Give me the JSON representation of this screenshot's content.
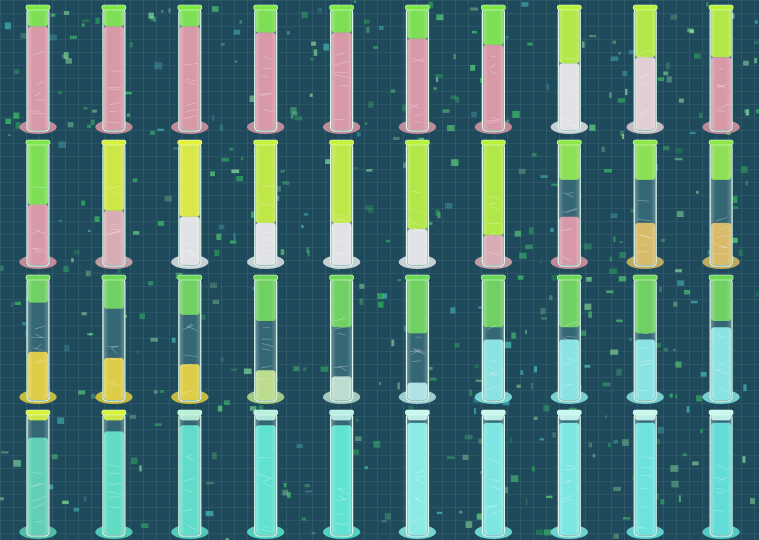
{
  "image": {
    "kind": "contact-sheet",
    "description_free": true,
    "background_color": "#1f4a5c",
    "grid_color": "#6f9aa8",
    "rows": [
      {
        "tubes": [
          {
            "fill": "#e89aa8",
            "fill_level": 0.85,
            "top": "#7ee84a",
            "top_level": 0.15
          },
          {
            "fill": "#e89aa8",
            "fill_level": 0.85,
            "top": "#7ee84a",
            "top_level": 0.15
          },
          {
            "fill": "#e89aa8",
            "fill_level": 0.85,
            "top": "#7ee84a",
            "top_level": 0.15
          },
          {
            "fill": "#e89aa8",
            "fill_level": 0.8,
            "top": "#7ee84a",
            "top_level": 0.2
          },
          {
            "fill": "#e89aa8",
            "fill_level": 0.8,
            "top": "#7ee84a",
            "top_level": 0.2
          },
          {
            "fill": "#e89aa8",
            "fill_level": 0.75,
            "top": "#7ee84a",
            "top_level": 0.25
          },
          {
            "fill": "#e89aa8",
            "fill_level": 0.7,
            "top": "#7ee84a",
            "top_level": 0.3
          },
          {
            "fill": "#f3f0f3",
            "fill_level": 0.55,
            "top": "#b8f23a",
            "top_level": 0.45
          },
          {
            "fill": "#f3d8dc",
            "fill_level": 0.6,
            "top": "#b8f23a",
            "top_level": 0.4
          },
          {
            "fill": "#e89aa8",
            "fill_level": 0.6,
            "top": "#b8f23a",
            "top_level": 0.4
          }
        ]
      },
      {
        "tubes": [
          {
            "fill": "#e89aa8",
            "fill_level": 0.5,
            "top": "#7ee84a",
            "top_level": 0.5
          },
          {
            "fill": "#e8b0b8",
            "fill_level": 0.45,
            "top": "#d8f23a",
            "top_level": 0.55
          },
          {
            "fill": "#f3f0f3",
            "fill_level": 0.4,
            "top": "#e6f23a",
            "top_level": 0.6
          },
          {
            "fill": "#f3f0f3",
            "fill_level": 0.35,
            "top": "#c8f23a",
            "top_level": 0.65
          },
          {
            "fill": "#f3f0f3",
            "fill_level": 0.35,
            "top": "#c8f23a",
            "top_level": 0.65
          },
          {
            "fill": "#f3f0f3",
            "fill_level": 0.3,
            "top": "#b8f23a",
            "top_level": 0.7
          },
          {
            "fill": "#e8b0b8",
            "fill_level": 0.25,
            "top": "#b8f23a",
            "top_level": 0.75
          },
          {
            "fill": "#e89aa8",
            "fill_level": 0.4,
            "top": "#8ee84a",
            "top_level": 0.3
          },
          {
            "fill": "#e8c060",
            "fill_level": 0.35,
            "top": "#8ee84a",
            "top_level": 0.3
          },
          {
            "fill": "#e8c060",
            "fill_level": 0.35,
            "top": "#8ee84a",
            "top_level": 0.3
          }
        ]
      },
      {
        "tubes": [
          {
            "fill": "#f0d63a",
            "fill_level": 0.4,
            "top": "#6fd85a",
            "top_level": 0.2
          },
          {
            "fill": "#f0d63a",
            "fill_level": 0.35,
            "top": "#6fd85a",
            "top_level": 0.25
          },
          {
            "fill": "#f0d63a",
            "fill_level": 0.3,
            "top": "#6fd85a",
            "top_level": 0.3
          },
          {
            "fill": "#c8e88a",
            "fill_level": 0.25,
            "top": "#6fd85a",
            "top_level": 0.35
          },
          {
            "fill": "#c8e8d8",
            "fill_level": 0.2,
            "top": "#6fd85a",
            "top_level": 0.4
          },
          {
            "fill": "#b8eef0",
            "fill_level": 0.15,
            "top": "#6fd85a",
            "top_level": 0.45
          },
          {
            "fill": "#8ef0ec",
            "fill_level": 0.5,
            "top": "#6fd85a",
            "top_level": 0.4
          },
          {
            "fill": "#8ef0ec",
            "fill_level": 0.5,
            "top": "#6fd85a",
            "top_level": 0.4
          },
          {
            "fill": "#8ef0ec",
            "fill_level": 0.5,
            "top": "#6fd85a",
            "top_level": 0.45
          },
          {
            "fill": "#8ef0ec",
            "fill_level": 0.6,
            "top": "#6fd85a",
            "top_level": 0.35
          }
        ]
      },
      {
        "tubes": [
          {
            "fill": "#5ed8b8",
            "fill_level": 0.8,
            "top": "#d8f23a",
            "top_level": 0.06
          },
          {
            "fill": "#5ee8c8",
            "fill_level": 0.85,
            "top": "#d8f23a",
            "top_level": 0.06
          },
          {
            "fill": "#5ee8d0",
            "fill_level": 0.9,
            "top": "#b8f0d8",
            "top_level": 0.06
          },
          {
            "fill": "#5ef0d8",
            "fill_level": 0.9,
            "top": "#b8f0e0",
            "top_level": 0.06
          },
          {
            "fill": "#5ef0dc",
            "fill_level": 0.9,
            "top": "#b8f0e8",
            "top_level": 0.06
          },
          {
            "fill": "#8ef8f0",
            "fill_level": 0.92,
            "top": "#c8f8f0",
            "top_level": 0.06
          },
          {
            "fill": "#7ef4ee",
            "fill_level": 0.92,
            "top": "#c8f8f0",
            "top_level": 0.06
          },
          {
            "fill": "#7ef4ee",
            "fill_level": 0.92,
            "top": "#c8f8f0",
            "top_level": 0.06
          },
          {
            "fill": "#6ef0ea",
            "fill_level": 0.92,
            "top": "#c8f8f0",
            "top_level": 0.06
          },
          {
            "fill": "#5ee8e0",
            "fill_level": 0.92,
            "top": "#c8f8f0",
            "top_level": 0.06
          }
        ]
      }
    ]
  }
}
